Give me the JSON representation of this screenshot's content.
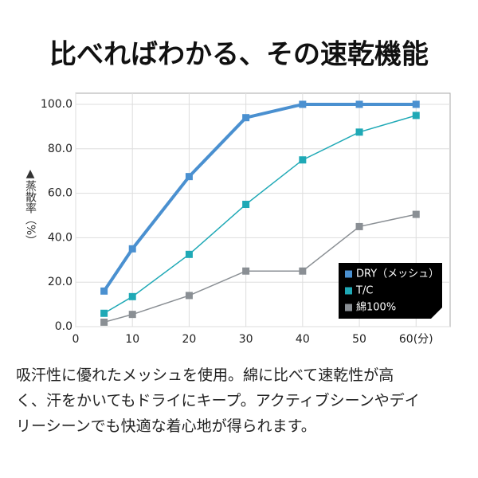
{
  "chart_data": {
    "type": "line",
    "title": "比べればわかる、その速乾機能",
    "y_label": "▲蒸散率（%）",
    "x": [
      5,
      10,
      20,
      30,
      40,
      50,
      60
    ],
    "series": [
      {
        "name": "DRY（メッシュ）",
        "color": "#4a90d0",
        "values": [
          16,
          35,
          67.5,
          94,
          100,
          100,
          100
        ]
      },
      {
        "name": "T/C",
        "color": "#1fa9b6",
        "values": [
          6,
          13.5,
          32.5,
          55,
          75,
          87.5,
          95
        ]
      },
      {
        "name": "綿100%",
        "color": "#8a8f94",
        "values": [
          2,
          5.5,
          14,
          25,
          25,
          45,
          50.5
        ]
      }
    ],
    "xlim": [
      0,
      66
    ],
    "ylim": [
      0,
      105
    ],
    "xticks": [
      0,
      10,
      20,
      30,
      40,
      50,
      {
        "value": 60,
        "label": "60(分)"
      }
    ],
    "yticks": [
      {
        "value": 0,
        "label": "0.0"
      },
      {
        "value": 20,
        "label": "20.0"
      },
      {
        "value": 40,
        "label": "40.0"
      },
      {
        "value": 60,
        "label": "60.0"
      },
      {
        "value": 80,
        "label": "80.0"
      },
      {
        "value": 100,
        "label": "100.0"
      }
    ],
    "grid": true,
    "legend": "lower-right"
  },
  "description": [
    "吸汗性に優れたメッシュを使用。綿に比べて速乾性が高",
    "く、汗をかいてもドライにキープ。アクティブシーンやデイ",
    "リーシーンでも快適な着心地が得られます。"
  ]
}
